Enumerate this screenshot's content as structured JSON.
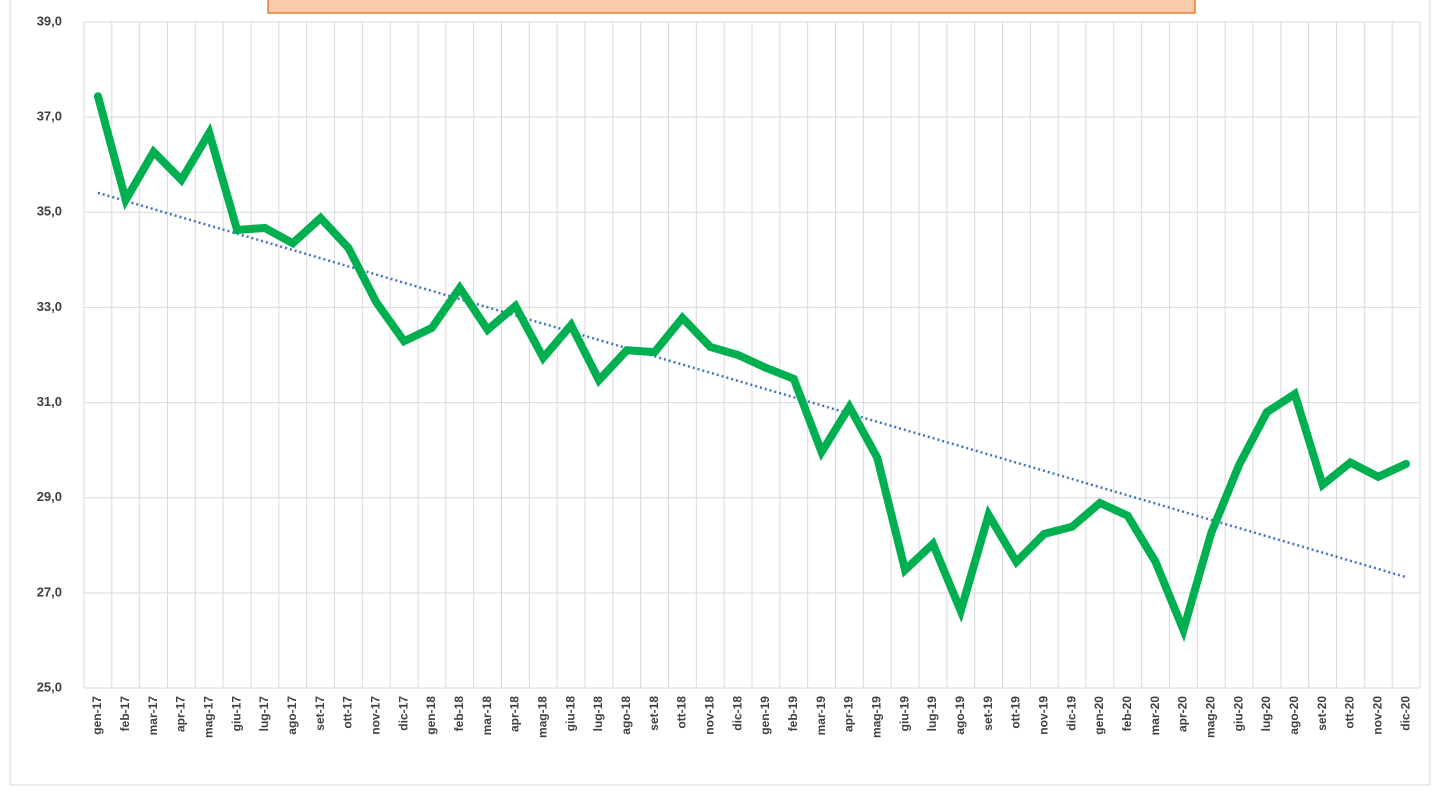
{
  "chart_data": {
    "type": "line",
    "categories": [
      "gen-17",
      "feb-17",
      "mar-17",
      "apr-17",
      "mag-17",
      "giu-17",
      "lug-17",
      "ago-17",
      "set-17",
      "ott-17",
      "nov-17",
      "dic-17",
      "gen-18",
      "feb-18",
      "mar-18",
      "apr-18",
      "mag-18",
      "giu-18",
      "lug-18",
      "ago-18",
      "set-18",
      "ott-18",
      "nov-18",
      "dic-18",
      "gen-19",
      "feb-19",
      "mar-19",
      "apr-19",
      "mag-19",
      "giu-19",
      "lug-19",
      "ago-19",
      "set-19",
      "ott-19",
      "nov-19",
      "dic-19",
      "gen-20",
      "feb-20",
      "mar-20",
      "apr-20",
      "mag-20",
      "giu-20",
      "lug-20",
      "ago-20",
      "set-20",
      "ott-20",
      "nov-20",
      "dic-20"
    ],
    "values": [
      37.44,
      35.26,
      36.27,
      35.68,
      36.67,
      34.63,
      34.67,
      34.35,
      34.88,
      34.25,
      33.11,
      32.29,
      32.57,
      33.41,
      32.53,
      33.03,
      31.94,
      32.63,
      31.47,
      32.1,
      32.06,
      32.78,
      32.17,
      32.0,
      31.73,
      31.5,
      29.96,
      30.91,
      29.84,
      27.48,
      28.03,
      26.62,
      28.64,
      27.65,
      28.24,
      28.39,
      28.89,
      28.62,
      27.65,
      26.22,
      28.26,
      29.69,
      30.8,
      31.18,
      29.27,
      29.74,
      29.44,
      29.71
    ],
    "color": "#00b050",
    "trendline": {
      "values": [
        35.41,
        27.33
      ],
      "color": "#4472c4"
    },
    "ylim": [
      25,
      39
    ],
    "yticks": [
      {
        "value": 25,
        "label": "25,0"
      },
      {
        "value": 27,
        "label": "27,0"
      },
      {
        "value": 29,
        "label": "29,0"
      },
      {
        "value": 31,
        "label": "31,0"
      },
      {
        "value": 33,
        "label": "33,0"
      },
      {
        "value": 35,
        "label": "35,0"
      },
      {
        "value": 37,
        "label": "37,0"
      },
      {
        "value": 39,
        "label": "39,0"
      }
    ],
    "grid": true
  }
}
